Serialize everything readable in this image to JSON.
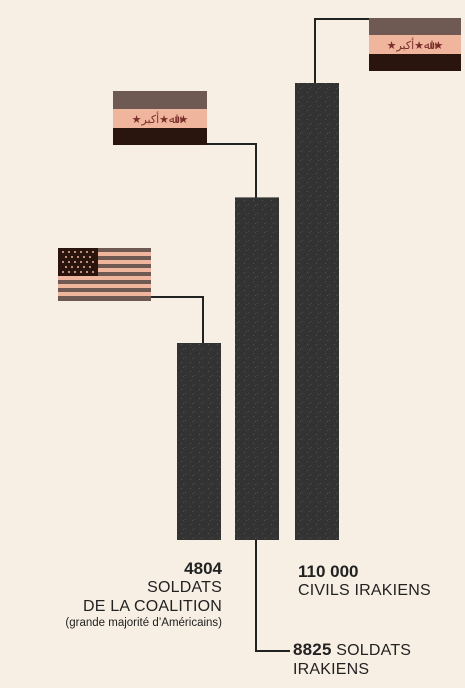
{
  "chart_data": {
    "type": "bar",
    "title": "",
    "xlabel": "",
    "ylabel": "",
    "categories": [
      "Soldats de la coalition",
      "Soldats irakiens",
      "Civils irakiens"
    ],
    "values": [
      4804,
      8825,
      110000
    ],
    "scale": "nonlinear (pictorial)",
    "bar_color": "#333333",
    "annotations": [
      {
        "value_text": "4804",
        "lines": [
          "SOLDATS",
          "DE LA COALITION"
        ],
        "note": "(grande majorité d’Américains)",
        "flag": "usa-flag"
      },
      {
        "value_text": "8825",
        "lines": [
          "SOLDATS",
          "IRAKIENS"
        ],
        "flag": "iraq-flag"
      },
      {
        "value_text": "110 000",
        "lines": [
          "CIVILS IRAKIENS"
        ],
        "flag": "iraq-flag"
      }
    ]
  },
  "colors": {
    "background": "#f7efe3",
    "bar": "#333333",
    "flag_brown": "#6e5a53",
    "flag_pink": "#efb59d",
    "flag_dark": "#2a140e",
    "flag_star": "#7a2e2a"
  }
}
